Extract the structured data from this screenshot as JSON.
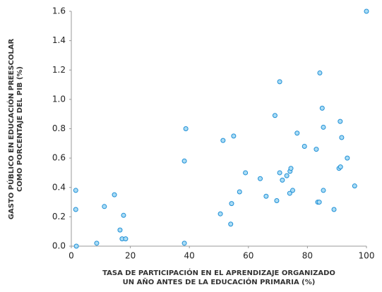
{
  "chart_data": {
    "type": "scatter",
    "xlabel": [
      "TASA DE PARTICIPACIÓN EN EL APRENDIZAJE ORGANIZADO",
      "UN AÑO ANTES DE LA EDUCACIÓN PRIMARIA (%)"
    ],
    "ylabel": [
      "GASTO PÚBLICO EN EDUCACIÓN PREESCOLAR",
      "COMO PORCENTAJE DEL PIB (%)"
    ],
    "xlim": [
      0,
      100
    ],
    "xticks": [
      0,
      20,
      40,
      60,
      80,
      100
    ],
    "ylim": [
      0,
      1.6
    ],
    "yticks": [
      {
        "value": 0,
        "label": "0.0"
      },
      0.2,
      0.4,
      0.6,
      0.8,
      {
        "value": 1,
        "label": "1.0"
      },
      1.2,
      1.4,
      1.6
    ],
    "color": "#a9dcf5",
    "edgecolor": "#1f8fd6",
    "x": [
      1.5,
      1.5,
      1.7,
      8.6,
      11.2,
      14.6,
      16.5,
      17.7,
      17.2,
      18.4,
      38.3,
      38.3,
      38.8,
      50.5,
      51.4,
      54,
      54.3,
      55,
      57,
      59,
      64,
      66,
      69,
      69.6,
      70.6,
      70.6,
      71.5,
      73,
      74,
      74.1,
      74.4,
      75,
      76.5,
      79,
      83,
      83.5,
      84,
      84.2,
      85,
      85.4,
      85.4,
      89,
      90.7,
      91.2,
      91.1,
      91.6,
      93.5,
      96,
      100
    ],
    "values": [
      0.38,
      0.25,
      0.0,
      0.02,
      0.27,
      0.35,
      0.11,
      0.21,
      0.05,
      0.05,
      0.02,
      0.58,
      0.8,
      0.22,
      0.72,
      0.15,
      0.29,
      0.75,
      0.37,
      0.5,
      0.46,
      0.34,
      0.89,
      0.31,
      0.5,
      1.12,
      0.45,
      0.48,
      0.36,
      0.51,
      0.53,
      0.38,
      0.77,
      0.68,
      0.66,
      0.3,
      0.3,
      1.18,
      0.94,
      0.81,
      0.38,
      0.25,
      0.53,
      0.54,
      0.85,
      0.74,
      0.6,
      0.41,
      1.6
    ]
  }
}
